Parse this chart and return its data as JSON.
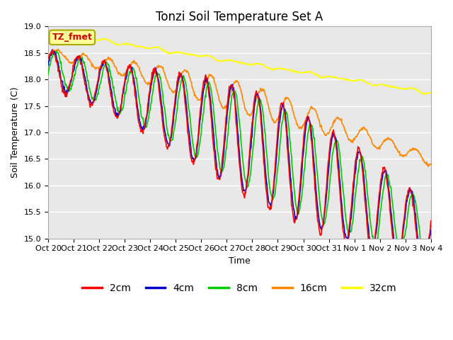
{
  "title": "Tonzi Soil Temperature Set A",
  "ylabel": "Soil Temperature (C)",
  "xlabel": "Time",
  "ylim": [
    15.0,
    19.0
  ],
  "yticks": [
    15.0,
    15.5,
    16.0,
    16.5,
    17.0,
    17.5,
    18.0,
    18.5,
    19.0
  ],
  "xtick_labels": [
    "Oct 20",
    "Oct 21",
    "Oct 22",
    "Oct 23",
    "Oct 24",
    "Oct 25",
    "Oct 26",
    "Oct 27",
    "Oct 28",
    "Oct 29",
    "Oct 30",
    "Oct 31",
    "Nov 1",
    "Nov 2",
    "Nov 3",
    "Nov 4"
  ],
  "annotation_text": "TZ_fmet",
  "annotation_bg": "#FFFF99",
  "annotation_edge": "#AAAA00",
  "line_colors": [
    "#FF0000",
    "#0000CC",
    "#00CC00",
    "#FF8800",
    "#FFFF00"
  ],
  "line_labels": [
    "2cm",
    "4cm",
    "8cm",
    "16cm",
    "32cm"
  ],
  "line_width": 1.2,
  "plot_bg": "#E8E8E8",
  "title_fontsize": 12,
  "axis_fontsize": 9,
  "tick_fontsize": 8,
  "legend_fontsize": 10
}
